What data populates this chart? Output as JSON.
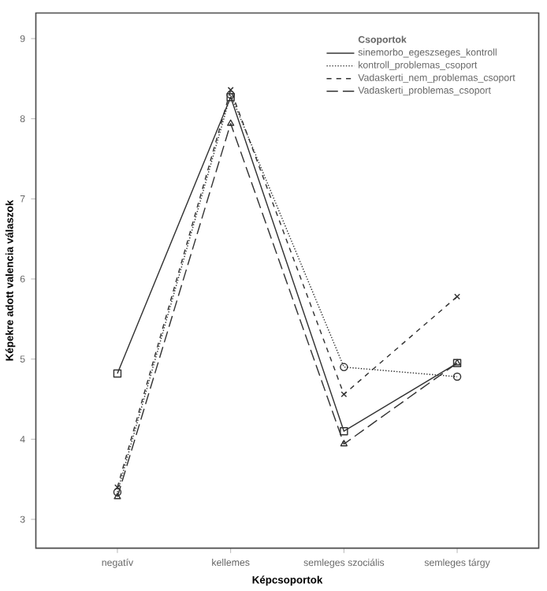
{
  "chart_data": {
    "type": "line",
    "xlabel": "Képcsoportok",
    "ylabel": "Képekre adott valencia válaszok",
    "legend_title": "Csoportok",
    "categories": [
      "negatív",
      "kellemes",
      "semleges szociális",
      "semleges tárgy"
    ],
    "series": [
      {
        "name": "sinemorbo_egeszseges_kontroll",
        "color": "#333333",
        "line_style": "solid",
        "marker": "square",
        "values": [
          4.82,
          8.27,
          4.1,
          4.95
        ]
      },
      {
        "name": "kontroll_problemas_csoport",
        "color": "#333333",
        "line_style": "dotted",
        "marker": "circle",
        "values": [
          3.34,
          8.3,
          4.9,
          4.78
        ]
      },
      {
        "name": "Vadaskerti_nem_problemas_csoport",
        "color": "#333333",
        "line_style": "dashed",
        "marker": "cross",
        "values": [
          3.4,
          8.36,
          4.56,
          5.78
        ]
      },
      {
        "name": "Vadaskerti_problemas_csoport",
        "color": "#333333",
        "line_style": "longdashed",
        "marker": "triangle",
        "values": [
          3.28,
          7.94,
          3.94,
          4.95
        ]
      }
    ],
    "ylim": [
      2.64,
      9.32
    ],
    "yticks": [
      3,
      4,
      5,
      6,
      7,
      8,
      9
    ],
    "grid": false,
    "legend": "top right"
  }
}
